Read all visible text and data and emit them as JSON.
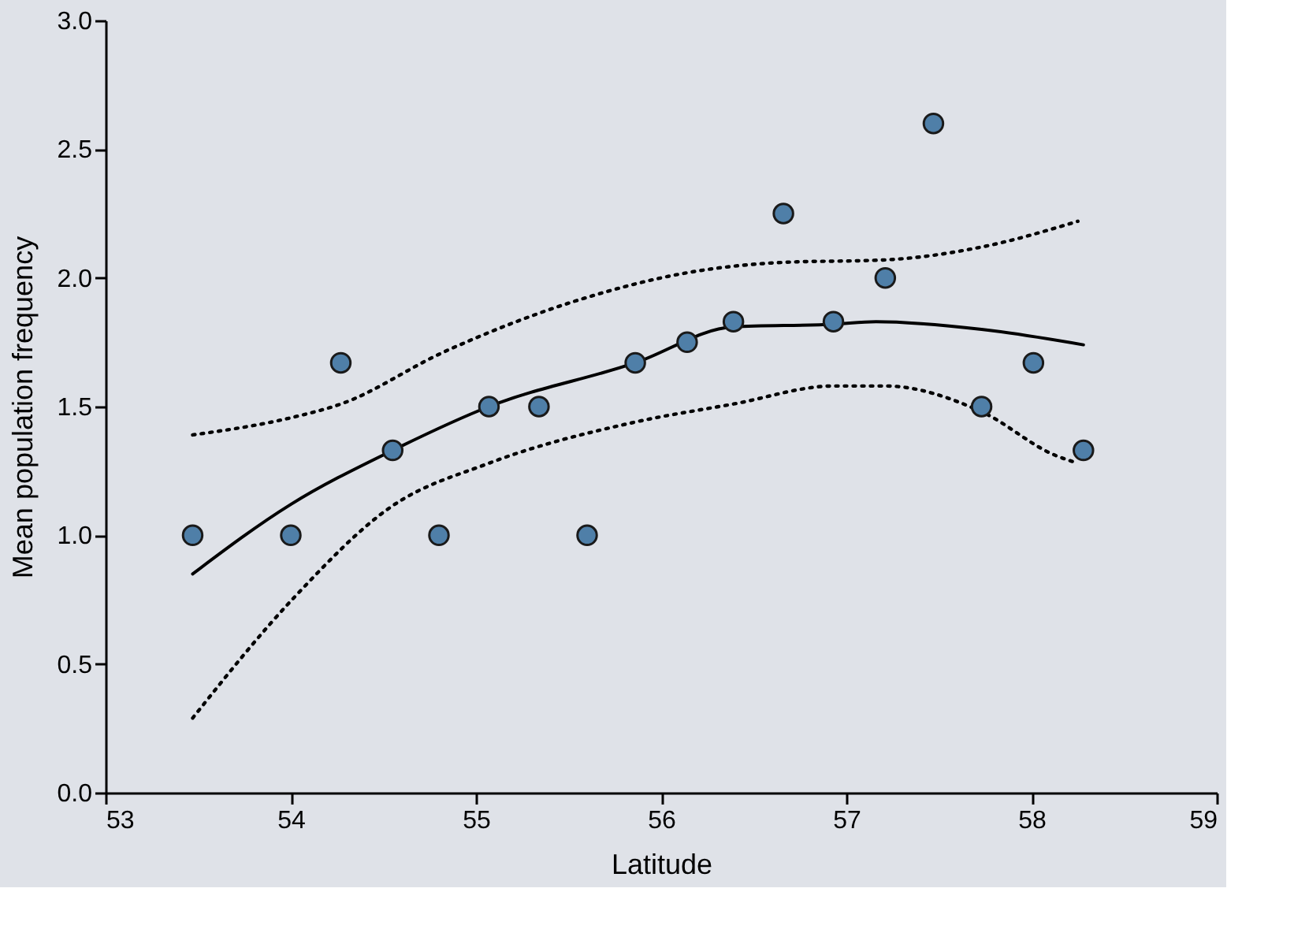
{
  "chart_data": {
    "type": "scatter",
    "xlabel": "Latitude",
    "ylabel": "Mean population frequency",
    "xlim": [
      53,
      59
    ],
    "xticks": [
      53,
      54,
      55,
      56,
      57,
      58,
      59
    ],
    "ylim": [
      0,
      3
    ],
    "yticks": [
      {
        "value": 0,
        "label": "0.0"
      },
      {
        "value": 0.5,
        "label": "0.5"
      },
      {
        "value": 1,
        "label": "1.0"
      },
      {
        "value": 1.5,
        "label": "1.5"
      },
      {
        "value": 2,
        "label": "2.0"
      },
      {
        "value": 2.5,
        "label": "2.5"
      },
      {
        "value": 3,
        "label": "3.0"
      }
    ],
    "grid": false,
    "series": [
      {
        "color": "#4f7fa8",
        "marker": "circle",
        "x": [
          53.47,
          54.0,
          54.27,
          54.55,
          54.8,
          55.07,
          55.34,
          55.6,
          55.86,
          56.14,
          56.39,
          56.66,
          56.93,
          57.21,
          57.47,
          57.73,
          58.01,
          58.28
        ],
        "values": [
          1.0,
          1.0,
          1.67,
          1.33,
          1.0,
          1.5,
          1.5,
          1.0,
          1.67,
          1.75,
          1.83,
          2.25,
          1.83,
          2.0,
          2.6,
          1.5,
          1.67,
          1.33
        ]
      },
      {
        "type": "line",
        "color": "#000000",
        "line_style": "solid",
        "x": [
          53.47,
          54.0,
          54.55,
          55.07,
          55.86,
          56.39,
          56.93,
          57.16,
          57.73,
          58.28
        ],
        "values": [
          0.85,
          1.12,
          1.33,
          1.5,
          1.67,
          1.81,
          1.82,
          1.83,
          1.8,
          1.74
        ]
      },
      {
        "type": "line",
        "color": "#000000",
        "line_style": "dotted",
        "x": [
          53.47,
          54.02,
          54.27,
          54.82,
          55.58,
          56.14,
          56.65,
          57.21,
          57.73,
          58.25
        ],
        "values": [
          1.39,
          1.46,
          1.51,
          1.71,
          1.92,
          2.02,
          2.06,
          2.07,
          2.12,
          2.22
        ]
      },
      {
        "type": "line",
        "color": "#000000",
        "line_style": "dotted",
        "x": [
          53.47,
          54.02,
          54.54,
          55.07,
          55.86,
          56.39,
          56.93,
          57.21,
          57.73,
          58.13,
          58.25
        ],
        "values": [
          0.29,
          0.76,
          1.11,
          1.28,
          1.44,
          1.51,
          1.58,
          1.58,
          1.48,
          1.31,
          1.28
        ]
      }
    ]
  }
}
